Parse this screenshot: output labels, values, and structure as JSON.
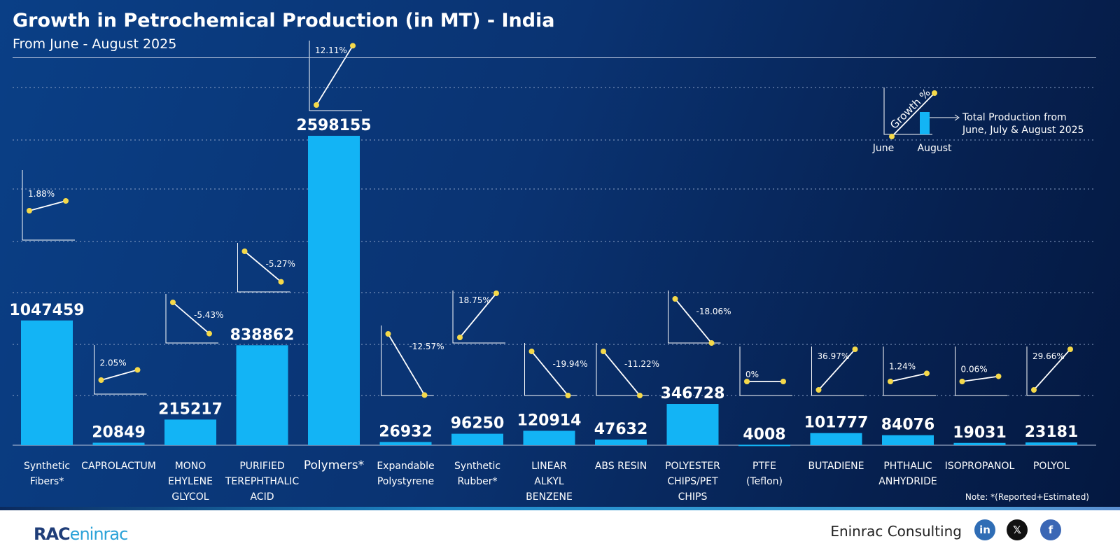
{
  "title": "Growth in Petrochemical Production (in MT) - India",
  "subtitle": "From June - August 2025",
  "note": "Note: *(Reported+Estimated)",
  "legend": {
    "growth_label": "Growth %",
    "bar_label_line1": "Total Production from",
    "bar_label_line2": "June, July & August 2025",
    "x_start": "June",
    "x_end": "August"
  },
  "footer": {
    "brand": "Eninrac Consulting",
    "logo": "RAC eninrac",
    "social": [
      {
        "name": "linkedin",
        "glyph": "in",
        "color": "#2f6db5"
      },
      {
        "name": "x",
        "glyph": "𝕏",
        "color": "#111111"
      },
      {
        "name": "facebook",
        "glyph": "f",
        "color": "#3b67b5"
      }
    ]
  },
  "colors": {
    "bar": "#13b4f5",
    "point": "#f5d94a",
    "line": "#ffffff"
  },
  "chart_data": {
    "type": "bar",
    "title": "Growth in Petrochemical Production (in MT) - India",
    "categories": [
      "Synthetic Fibers*",
      "CAPROLACTUM",
      "MONO EHYLENE GLYCOL",
      "PURIFIED TEREPHTHALIC ACID",
      "Polymers*",
      "Expandable Polystyrene",
      "Synthetic Rubber*",
      "LINEAR ALKYL BENZENE",
      "ABS RESIN",
      "POLYESTER CHIPS/PET CHIPS",
      "PTFE (Teflon)",
      "BUTADIENE",
      "PHTHALIC ANHYDRIDE",
      "ISOPROPANOL",
      "POLYOL"
    ],
    "values": [
      1047459,
      20849,
      215217,
      838862,
      2598155,
      26932,
      96250,
      120914,
      47632,
      346728,
      4008,
      101777,
      84076,
      19031,
      23181
    ],
    "growth_labels": [
      "1.88%",
      "2.05%",
      "-5.43%",
      "-5.27%",
      "12.11%",
      "-12.57%",
      "18.75%",
      "-19.94%",
      "-11.22%",
      "-18.06%",
      "0%",
      "36.97%",
      "1.24%",
      "0.06%",
      "29.66%"
    ],
    "growth": [
      1.88,
      2.05,
      -5.43,
      -5.27,
      12.11,
      -12.57,
      18.75,
      -19.94,
      -11.22,
      -18.06,
      0,
      36.97,
      1.24,
      0.06,
      29.66
    ],
    "ylim": [
      0,
      2598155
    ],
    "grid": true
  }
}
